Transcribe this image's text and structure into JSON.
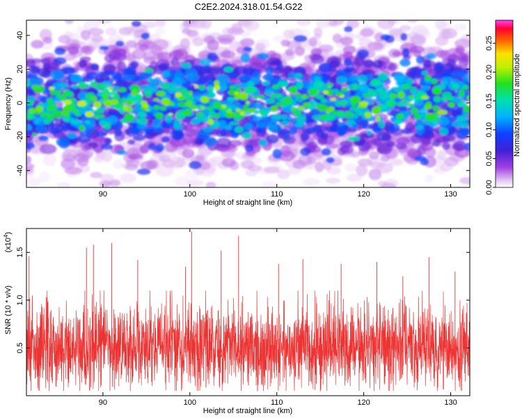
{
  "title": "C2E2.2024.318.01.54.G22",
  "chart_data": [
    {
      "type": "heatmap",
      "xlabel": "Height of straight line (km)",
      "ylabel": "Frequency (Hz)",
      "xlim": [
        81.2,
        132.2
      ],
      "ylim": [
        -50,
        49
      ],
      "xticks": [
        90,
        100,
        110,
        120,
        130
      ],
      "yticks": [
        -40,
        -20,
        0,
        20,
        40
      ],
      "colorbar": {
        "label": "Normalized spectral amplitude",
        "range": [
          0.0,
          0.29
        ],
        "ticks": [
          "0.00",
          "0.05",
          "0.10",
          "0.15",
          "0.20",
          "0.25"
        ],
        "tick_values": [
          0.0,
          0.05,
          0.1,
          0.15,
          0.2,
          0.25
        ],
        "colormap": "rainbow (violet-blue-cyan-green-yellow-red-magenta)"
      },
      "description_of_values": "Spectral amplitude concentrated between about -25 Hz and +25 Hz across all heights, peaks up to ~0.2 near 0 Hz; weak values elsewhere"
    },
    {
      "type": "line",
      "xlabel": "Height of straight line (km)",
      "ylabel": "SNR (10 * v/v)",
      "y_multiplier": "(x10",
      "y_multiplier_exp": "4",
      "y_multiplier_close": ")",
      "xlim": [
        81.2,
        132.2
      ],
      "ylim": [
        0.0,
        1.75
      ],
      "xticks": [
        90,
        100,
        110,
        120,
        130
      ],
      "yticks": [
        "0.5",
        "1.0",
        "1.5"
      ],
      "ytick_values": [
        0.5,
        1.0,
        1.5
      ],
      "series": [
        {
          "color": "#ee3333",
          "baseline": 0.5,
          "typical_range": [
            0.05,
            1.0
          ],
          "peaks": [
            {
              "x": 81.5,
              "y": 1.46
            },
            {
              "x": 88.1,
              "y": 1.55
            },
            {
              "x": 88.9,
              "y": 1.58
            },
            {
              "x": 91.0,
              "y": 1.6
            },
            {
              "x": 94.0,
              "y": 1.42
            },
            {
              "x": 99.5,
              "y": 1.35
            },
            {
              "x": 100.2,
              "y": 1.72
            },
            {
              "x": 103.6,
              "y": 1.52
            },
            {
              "x": 105.6,
              "y": 1.67
            },
            {
              "x": 110.2,
              "y": 1.38
            },
            {
              "x": 113.0,
              "y": 1.43
            },
            {
              "x": 117.4,
              "y": 1.38
            },
            {
              "x": 121.5,
              "y": 1.4
            },
            {
              "x": 124.5,
              "y": 1.25
            },
            {
              "x": 127.5,
              "y": 1.45
            },
            {
              "x": 130.5,
              "y": 1.3
            }
          ]
        }
      ]
    }
  ]
}
